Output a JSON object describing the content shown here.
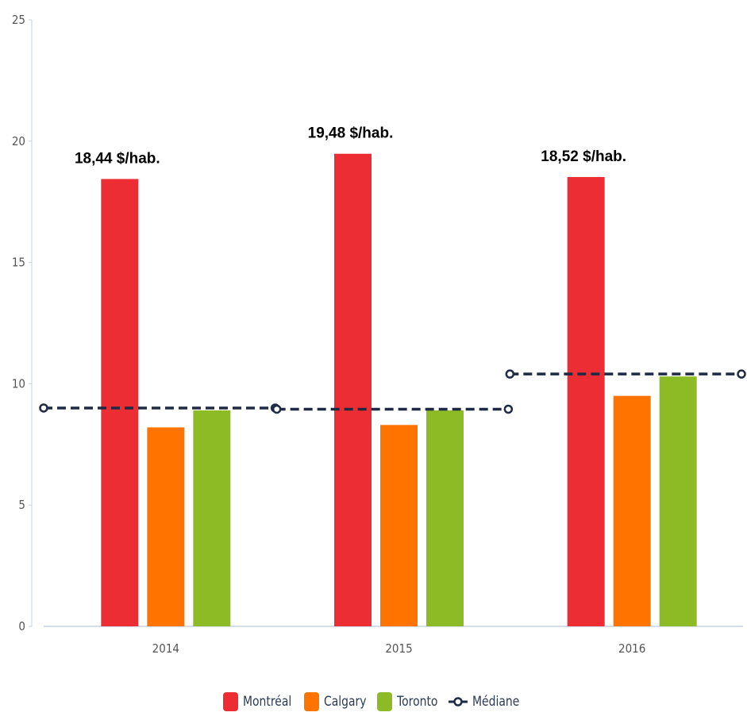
{
  "chart_data": {
    "type": "bar",
    "categories": [
      "2014",
      "2015",
      "2016"
    ],
    "series": [
      {
        "name": "Montréal",
        "values": [
          18.44,
          19.48,
          18.52
        ],
        "color": "#ec2d33"
      },
      {
        "name": "Calgary",
        "values": [
          8.2,
          8.3,
          9.5
        ],
        "color": "#ff7400"
      },
      {
        "name": "Toronto",
        "values": [
          8.9,
          8.9,
          10.3
        ],
        "color": "#8cbb25"
      }
    ],
    "median": {
      "name": "Médiane",
      "values": [
        9.0,
        8.95,
        10.4
      ],
      "color": "#1f2b44"
    },
    "data_labels": [
      "18,44 $/hab.",
      "19,48 $/hab.",
      "18,52 $/hab."
    ],
    "yticks": [
      "0",
      "5",
      "10",
      "15",
      "20",
      "25"
    ],
    "ylim": [
      0,
      25
    ],
    "title": "",
    "xlabel": "",
    "ylabel": "",
    "grid": false,
    "legend_position": "bottom"
  }
}
